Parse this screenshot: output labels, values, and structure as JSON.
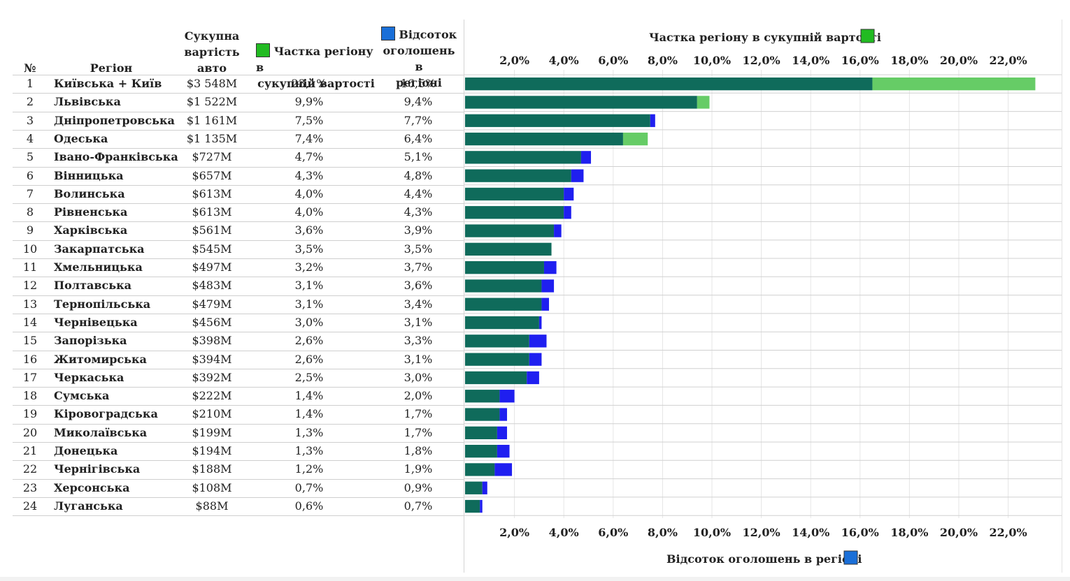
{
  "headers": {
    "num": "№",
    "region": "Регіон",
    "total_value": [
      "Сукупна",
      "вартість",
      "авто"
    ],
    "share_legend": [
      "Частка регіону в",
      "сукупній вартості"
    ],
    "ads_legend": [
      "Відсоток",
      "оголошень в",
      "регіоні"
    ]
  },
  "colors": {
    "share_base": "#0f6b5b",
    "share_excess": "#66cc66",
    "ads_excess": "#1f1ff0",
    "share_legend_swatch": "#22bb22",
    "ads_legend_swatch": "#1a6fd8",
    "gridline": "#e6e6e6",
    "row_line": "#d0d0d0"
  },
  "rows": [
    {
      "num": "1",
      "region": "Київська + Київ",
      "value": "$3 548M",
      "share": "23,1%",
      "ads": "16,5%"
    },
    {
      "num": "2",
      "region": "Львівська",
      "value": "$1 522M",
      "share": "9,9%",
      "ads": "9,4%"
    },
    {
      "num": "3",
      "region": "Дніпропетровська",
      "value": "$1 161M",
      "share": "7,5%",
      "ads": "7,7%"
    },
    {
      "num": "4",
      "region": "Одеська",
      "value": "$1 135M",
      "share": "7,4%",
      "ads": "6,4%"
    },
    {
      "num": "5",
      "region": "Івано-Франківська",
      "value": "$727M",
      "share": "4,7%",
      "ads": "5,1%"
    },
    {
      "num": "6",
      "region": "Вінницька",
      "value": "$657M",
      "share": "4,3%",
      "ads": "4,8%"
    },
    {
      "num": "7",
      "region": "Волинська",
      "value": "$613M",
      "share": "4,0%",
      "ads": "4,4%"
    },
    {
      "num": "8",
      "region": "Рівненська",
      "value": "$613M",
      "share": "4,0%",
      "ads": "4,3%"
    },
    {
      "num": "9",
      "region": "Харківська",
      "value": "$561M",
      "share": "3,6%",
      "ads": "3,9%"
    },
    {
      "num": "10",
      "region": "Закарпатська",
      "value": "$545M",
      "share": "3,5%",
      "ads": "3,5%"
    },
    {
      "num": "11",
      "region": "Хмельницька",
      "value": "$497M",
      "share": "3,2%",
      "ads": "3,7%"
    },
    {
      "num": "12",
      "region": "Полтавська",
      "value": "$483M",
      "share": "3,1%",
      "ads": "3,6%"
    },
    {
      "num": "13",
      "region": "Тернопільська",
      "value": "$479M",
      "share": "3,1%",
      "ads": "3,4%"
    },
    {
      "num": "14",
      "region": "Чернівецька",
      "value": "$456M",
      "share": "3,0%",
      "ads": "3,1%"
    },
    {
      "num": "15",
      "region": "Запорізька",
      "value": "$398M",
      "share": "2,6%",
      "ads": "3,3%"
    },
    {
      "num": "16",
      "region": "Житомирська",
      "value": "$394M",
      "share": "2,6%",
      "ads": "3,1%"
    },
    {
      "num": "17",
      "region": "Черкаська",
      "value": "$392M",
      "share": "2,5%",
      "ads": "3,0%"
    },
    {
      "num": "18",
      "region": "Сумська",
      "value": "$222M",
      "share": "1,4%",
      "ads": "2,0%"
    },
    {
      "num": "19",
      "region": "Кіровоградська",
      "value": "$210M",
      "share": "1,4%",
      "ads": "1,7%"
    },
    {
      "num": "20",
      "region": "Миколаївська",
      "value": "$199M",
      "share": "1,3%",
      "ads": "1,7%"
    },
    {
      "num": "21",
      "region": "Донецька",
      "value": "$194M",
      "share": "1,3%",
      "ads": "1,8%"
    },
    {
      "num": "22",
      "region": "Чернігівська",
      "value": "$188M",
      "share": "1,2%",
      "ads": "1,9%"
    },
    {
      "num": "23",
      "region": "Херсонська",
      "value": "$108M",
      "share": "0,7%",
      "ads": "0,9%"
    },
    {
      "num": "24",
      "region": "Луганська",
      "value": "$88M",
      "share": "0,6%",
      "ads": "0,7%"
    }
  ],
  "chart_data": {
    "type": "bar",
    "orientation": "horizontal",
    "top_axis_title": "Частка регіону в сукупній вартості",
    "bottom_axis_title": "Відсоток оголошень в регіоні",
    "xlim": [
      0,
      24
    ],
    "ticks": [
      2,
      4,
      6,
      8,
      10,
      12,
      14,
      16,
      18,
      20,
      22
    ],
    "tick_labels": [
      "2,0%",
      "4,0%",
      "6,0%",
      "8,0%",
      "10,0%",
      "12,0%",
      "14,0%",
      "16,0%",
      "18,0%",
      "20,0%",
      "22,0%"
    ],
    "grid": true,
    "categories": [
      "Київська + Київ",
      "Львівська",
      "Дніпропетровська",
      "Одеська",
      "Івано-Франківська",
      "Вінницька",
      "Волинська",
      "Рівненська",
      "Харківська",
      "Закарпатська",
      "Хмельницька",
      "Полтавська",
      "Тернопільська",
      "Чернівецька",
      "Запорізька",
      "Житомирська",
      "Черкаська",
      "Сумська",
      "Кіровоградська",
      "Миколаївська",
      "Донецька",
      "Чернігівська",
      "Херсонська",
      "Луганська"
    ],
    "series": [
      {
        "name": "Частка регіону в сукупній вартості",
        "values": [
          23.1,
          9.9,
          7.5,
          7.4,
          4.7,
          4.3,
          4.0,
          4.0,
          3.6,
          3.5,
          3.2,
          3.1,
          3.1,
          3.0,
          2.6,
          2.6,
          2.5,
          1.4,
          1.4,
          1.3,
          1.3,
          1.2,
          0.7,
          0.6
        ]
      },
      {
        "name": "Відсоток оголошень в регіоні",
        "values": [
          16.5,
          9.4,
          7.7,
          6.4,
          5.1,
          4.8,
          4.4,
          4.3,
          3.9,
          3.5,
          3.7,
          3.6,
          3.4,
          3.1,
          3.3,
          3.1,
          3.0,
          2.0,
          1.7,
          1.7,
          1.8,
          1.9,
          0.9,
          0.7
        ]
      }
    ]
  }
}
